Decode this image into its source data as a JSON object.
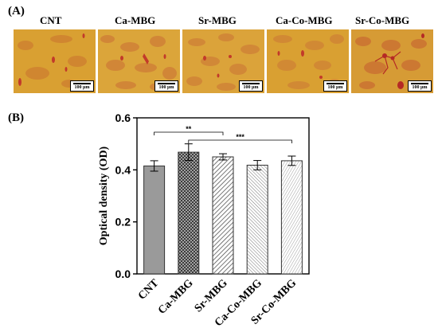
{
  "panel_a": {
    "label": "(A)",
    "images": [
      {
        "label": "CNT",
        "scale_label": "100 µm"
      },
      {
        "label": "Ca-MBG",
        "scale_label": "100 µm"
      },
      {
        "label": "Sr-MBG",
        "scale_label": "100 µm"
      },
      {
        "label": "Ca-Co-MBG",
        "scale_label": "100 µm"
      },
      {
        "label": "Sr-Co-MBG",
        "scale_label": "100 µm"
      }
    ]
  },
  "panel_b": {
    "label": "(B)"
  },
  "colors": {
    "micro_background": "#d9a032",
    "micro_stain": "#c94a2c",
    "bar_fill": "#9a9a9a",
    "axis": "#000000"
  },
  "chart_data": {
    "type": "bar",
    "categories": [
      "CNT",
      "Ca-MBG",
      "Sr-MBG",
      "Ca-Co-MBG",
      "Sr-Co-MBG"
    ],
    "values": [
      0.415,
      0.468,
      0.45,
      0.418,
      0.435
    ],
    "errors": [
      0.02,
      0.032,
      0.012,
      0.018,
      0.018
    ],
    "patterns": [
      "solid",
      "crosshatch",
      "diagonal",
      "diagonal-dense",
      "diagonal-fine"
    ],
    "title": "",
    "xlabel": "",
    "ylabel": "Optical density (OD)",
    "ylim": [
      0,
      0.6
    ],
    "yticks": [
      "0.0",
      "0.2",
      "0.4",
      "0.6"
    ],
    "grid": false,
    "significance": [
      {
        "from": "CNT",
        "to": "Sr-MBG",
        "label": "**"
      },
      {
        "from": "Ca-MBG",
        "to": "Sr-Co-MBG",
        "label": "***"
      }
    ]
  }
}
